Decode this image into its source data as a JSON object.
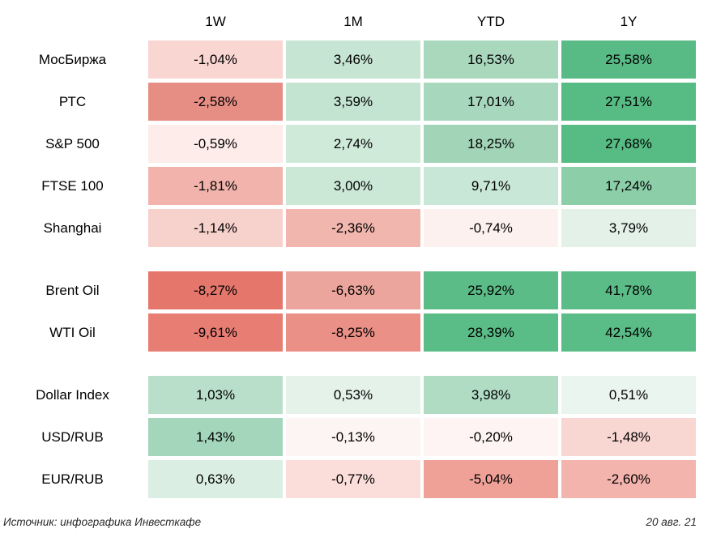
{
  "header": {
    "columns": [
      "1W",
      "1M",
      "YTD",
      "1Y"
    ]
  },
  "footer": {
    "source": "Источник: инфографика Инвесткафе",
    "date": "20 авг. 21"
  },
  "colors": {
    "background": "#ffffff",
    "text": "#000000",
    "positive_strong": "#58bb85",
    "negative_strong": "#e5766c",
    "footer_text": "#2a2a2a"
  },
  "chart_data": {
    "type": "heatmap",
    "columns": [
      "1W",
      "1M",
      "YTD",
      "1Y"
    ],
    "value_format": "percent, comma decimal separator",
    "legend_position": "none",
    "groups": [
      {
        "rows": [
          {
            "label": "МосБиржа",
            "values": [
              -1.04,
              3.46,
              16.53,
              25.58
            ],
            "display": [
              "-1,04%",
              "3,46%",
              "16,53%",
              "25,58%"
            ],
            "colors": [
              "#f9d6d2",
              "#c6e5d3",
              "#a9d8bd",
              "#58bb85"
            ]
          },
          {
            "label": "РТС",
            "values": [
              -2.58,
              3.59,
              17.01,
              27.51
            ],
            "display": [
              "-2,58%",
              "3,59%",
              "17,01%",
              "27,51%"
            ],
            "colors": [
              "#e78e84",
              "#c4e4d2",
              "#a7d7bc",
              "#57bb84"
            ]
          },
          {
            "label": "S&P 500",
            "values": [
              -0.59,
              2.74,
              18.25,
              27.68
            ],
            "display": [
              "-0,59%",
              "2,74%",
              "18,25%",
              "27,68%"
            ],
            "colors": [
              "#fdecea",
              "#cfead9",
              "#a2d5b8",
              "#57bb84"
            ]
          },
          {
            "label": "FTSE 100",
            "values": [
              -1.81,
              3.0,
              9.71,
              17.24
            ],
            "display": [
              "-1,81%",
              "3,00%",
              "9,71%",
              "17,24%"
            ],
            "colors": [
              "#f1b3ac",
              "#cbe8d7",
              "#c9e7d6",
              "#8bcea8"
            ]
          },
          {
            "label": "Shanghai",
            "values": [
              -1.14,
              -2.36,
              -0.74,
              3.79
            ],
            "display": [
              "-1,14%",
              "-2,36%",
              "-0,74%",
              "3,79%"
            ],
            "colors": [
              "#f7d1cc",
              "#f1b6ae",
              "#fdf1ef",
              "#e3f1e9"
            ]
          }
        ]
      },
      {
        "rows": [
          {
            "label": "Brent Oil",
            "values": [
              -8.27,
              -6.63,
              25.92,
              41.78
            ],
            "display": [
              "-8,27%",
              "-6,63%",
              "25,92%",
              "41,78%"
            ],
            "colors": [
              "#e5766c",
              "#eca59c",
              "#5bbc87",
              "#5bbc87"
            ]
          },
          {
            "label": "WTI Oil",
            "values": [
              -9.61,
              -8.25,
              28.39,
              42.54
            ],
            "display": [
              "-9,61%",
              "-8,25%",
              "28,39%",
              "42,54%"
            ],
            "colors": [
              "#e87d73",
              "#ea9086",
              "#5abc86",
              "#5abc86"
            ]
          }
        ]
      },
      {
        "rows": [
          {
            "label": "Dollar Index",
            "values": [
              1.03,
              0.53,
              3.98,
              0.51
            ],
            "display": [
              "1,03%",
              "0,53%",
              "3,98%",
              "0,51%"
            ],
            "colors": [
              "#b9dfca",
              "#e4f2ea",
              "#b0dcc3",
              "#eaf5f0"
            ]
          },
          {
            "label": "USD/RUB",
            "values": [
              1.43,
              -0.13,
              -0.2,
              -1.48
            ],
            "display": [
              "1,43%",
              "-0,13%",
              "-0,20%",
              "-1,48%"
            ],
            "colors": [
              "#a3d6ba",
              "#fdf5f4",
              "#fdf4f3",
              "#f8d6d2"
            ]
          },
          {
            "label": "EUR/RUB",
            "values": [
              0.63,
              -0.77,
              -5.04,
              -2.6
            ],
            "display": [
              "0,63%",
              "-0,77%",
              "-5,04%",
              "-2,60%"
            ],
            "colors": [
              "#daeee4",
              "#fbdeda",
              "#efa198",
              "#f3b4ad"
            ]
          }
        ]
      }
    ]
  }
}
